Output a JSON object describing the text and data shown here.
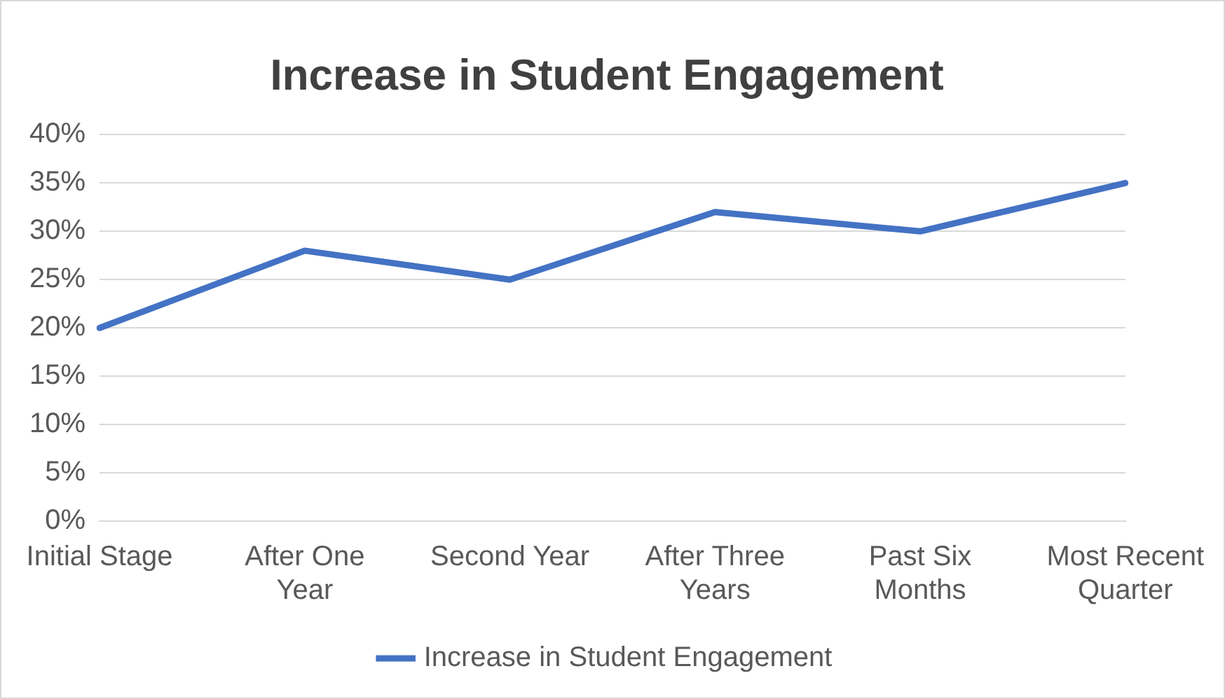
{
  "chart_data": {
    "type": "line",
    "title": "Increase in Student Engagement",
    "categories": [
      "Initial Stage",
      "After One Year",
      "Second Year",
      "After Three Years",
      "Past Six Months",
      "Most Recent Quarter"
    ],
    "series": [
      {
        "name": "Increase in Student Engagement",
        "color": "#4472c4",
        "values": [
          20,
          28,
          25,
          32,
          30,
          35
        ]
      }
    ],
    "ylim": [
      0,
      40
    ],
    "yticks": [
      {
        "value": 0,
        "label": "0%"
      },
      {
        "value": 5,
        "label": "5%"
      },
      {
        "value": 10,
        "label": "10%"
      },
      {
        "value": 15,
        "label": "15%"
      },
      {
        "value": 20,
        "label": "20%"
      },
      {
        "value": 25,
        "label": "25%"
      },
      {
        "value": 30,
        "label": "30%"
      },
      {
        "value": 35,
        "label": "35%"
      },
      {
        "value": 40,
        "label": "40%"
      }
    ],
    "grid": "y",
    "legend": "bottom",
    "marker": "none",
    "line_style": "solid"
  }
}
